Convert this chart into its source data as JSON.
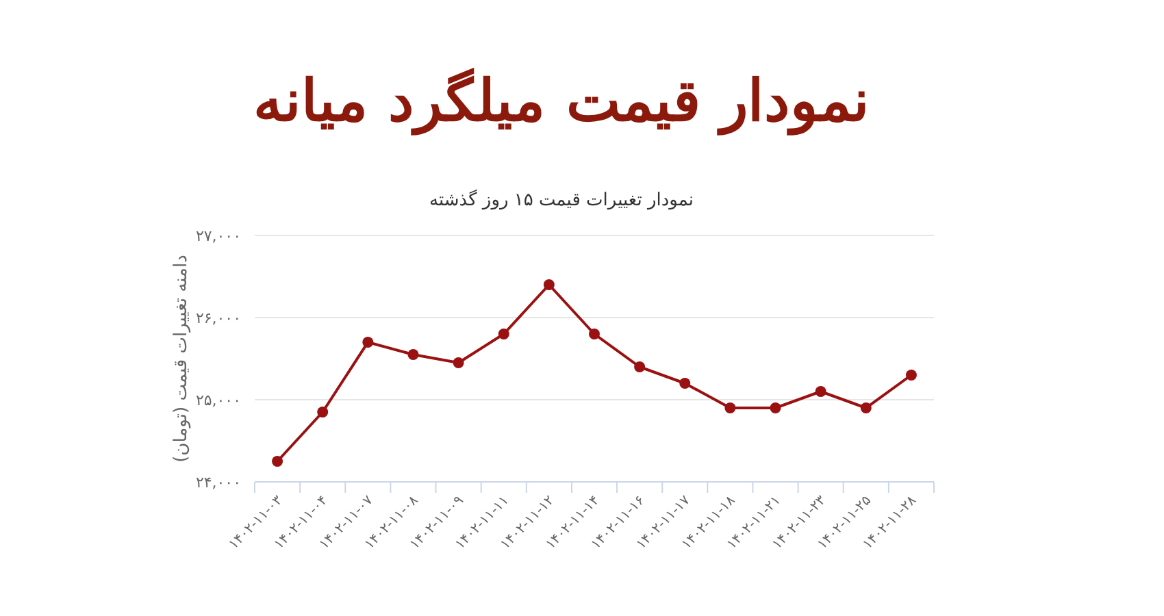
{
  "chart_data": {
    "type": "line",
    "title": "نمودار قیمت میلگرد میانه",
    "subtitle": "نمودار تغییرات قیمت ۱۵ روز گذشته",
    "ylabel": "دامنه تغییرات قیمت (تومان)",
    "categories": [
      "۱۴۰۲-۱۱-۰۳",
      "۱۴۰۲-۱۱-۰۴",
      "۱۴۰۲-۱۱-۰۷",
      "۱۴۰۲-۱۱-۰۸",
      "۱۴۰۲-۱۱-۰۹",
      "۱۴۰۲-۱۱-۱۱",
      "۱۴۰۲-۱۱-۱۲",
      "۱۴۰۲-۱۱-۱۴",
      "۱۴۰۲-۱۱-۱۶",
      "۱۴۰۲-۱۱-۱۷",
      "۱۴۰۲-۱۱-۱۸",
      "۱۴۰۲-۱۱-۲۱",
      "۱۴۰۲-۱۱-۲۳",
      "۱۴۰۲-۱۱-۲۵",
      "۱۴۰۲-۱۱-۲۸"
    ],
    "series": [
      {
        "color": "#9b1111",
        "values": [
          24250,
          24850,
          25700,
          25550,
          25450,
          25800,
          26400,
          25800,
          25400,
          25200,
          24900,
          24900,
          25100,
          24900,
          25300
        ]
      }
    ],
    "ylim": [
      24000,
      27000
    ],
    "yticks": [
      {
        "value": 24000,
        "label": "۲۴,۰۰۰"
      },
      {
        "value": 25000,
        "label": "۲۵,۰۰۰"
      },
      {
        "value": 26000,
        "label": "۲۶,۰۰۰"
      },
      {
        "value": 27000,
        "label": "۲۷,۰۰۰"
      }
    ],
    "grid": "y",
    "marker": "circle",
    "line_style": "solid"
  }
}
